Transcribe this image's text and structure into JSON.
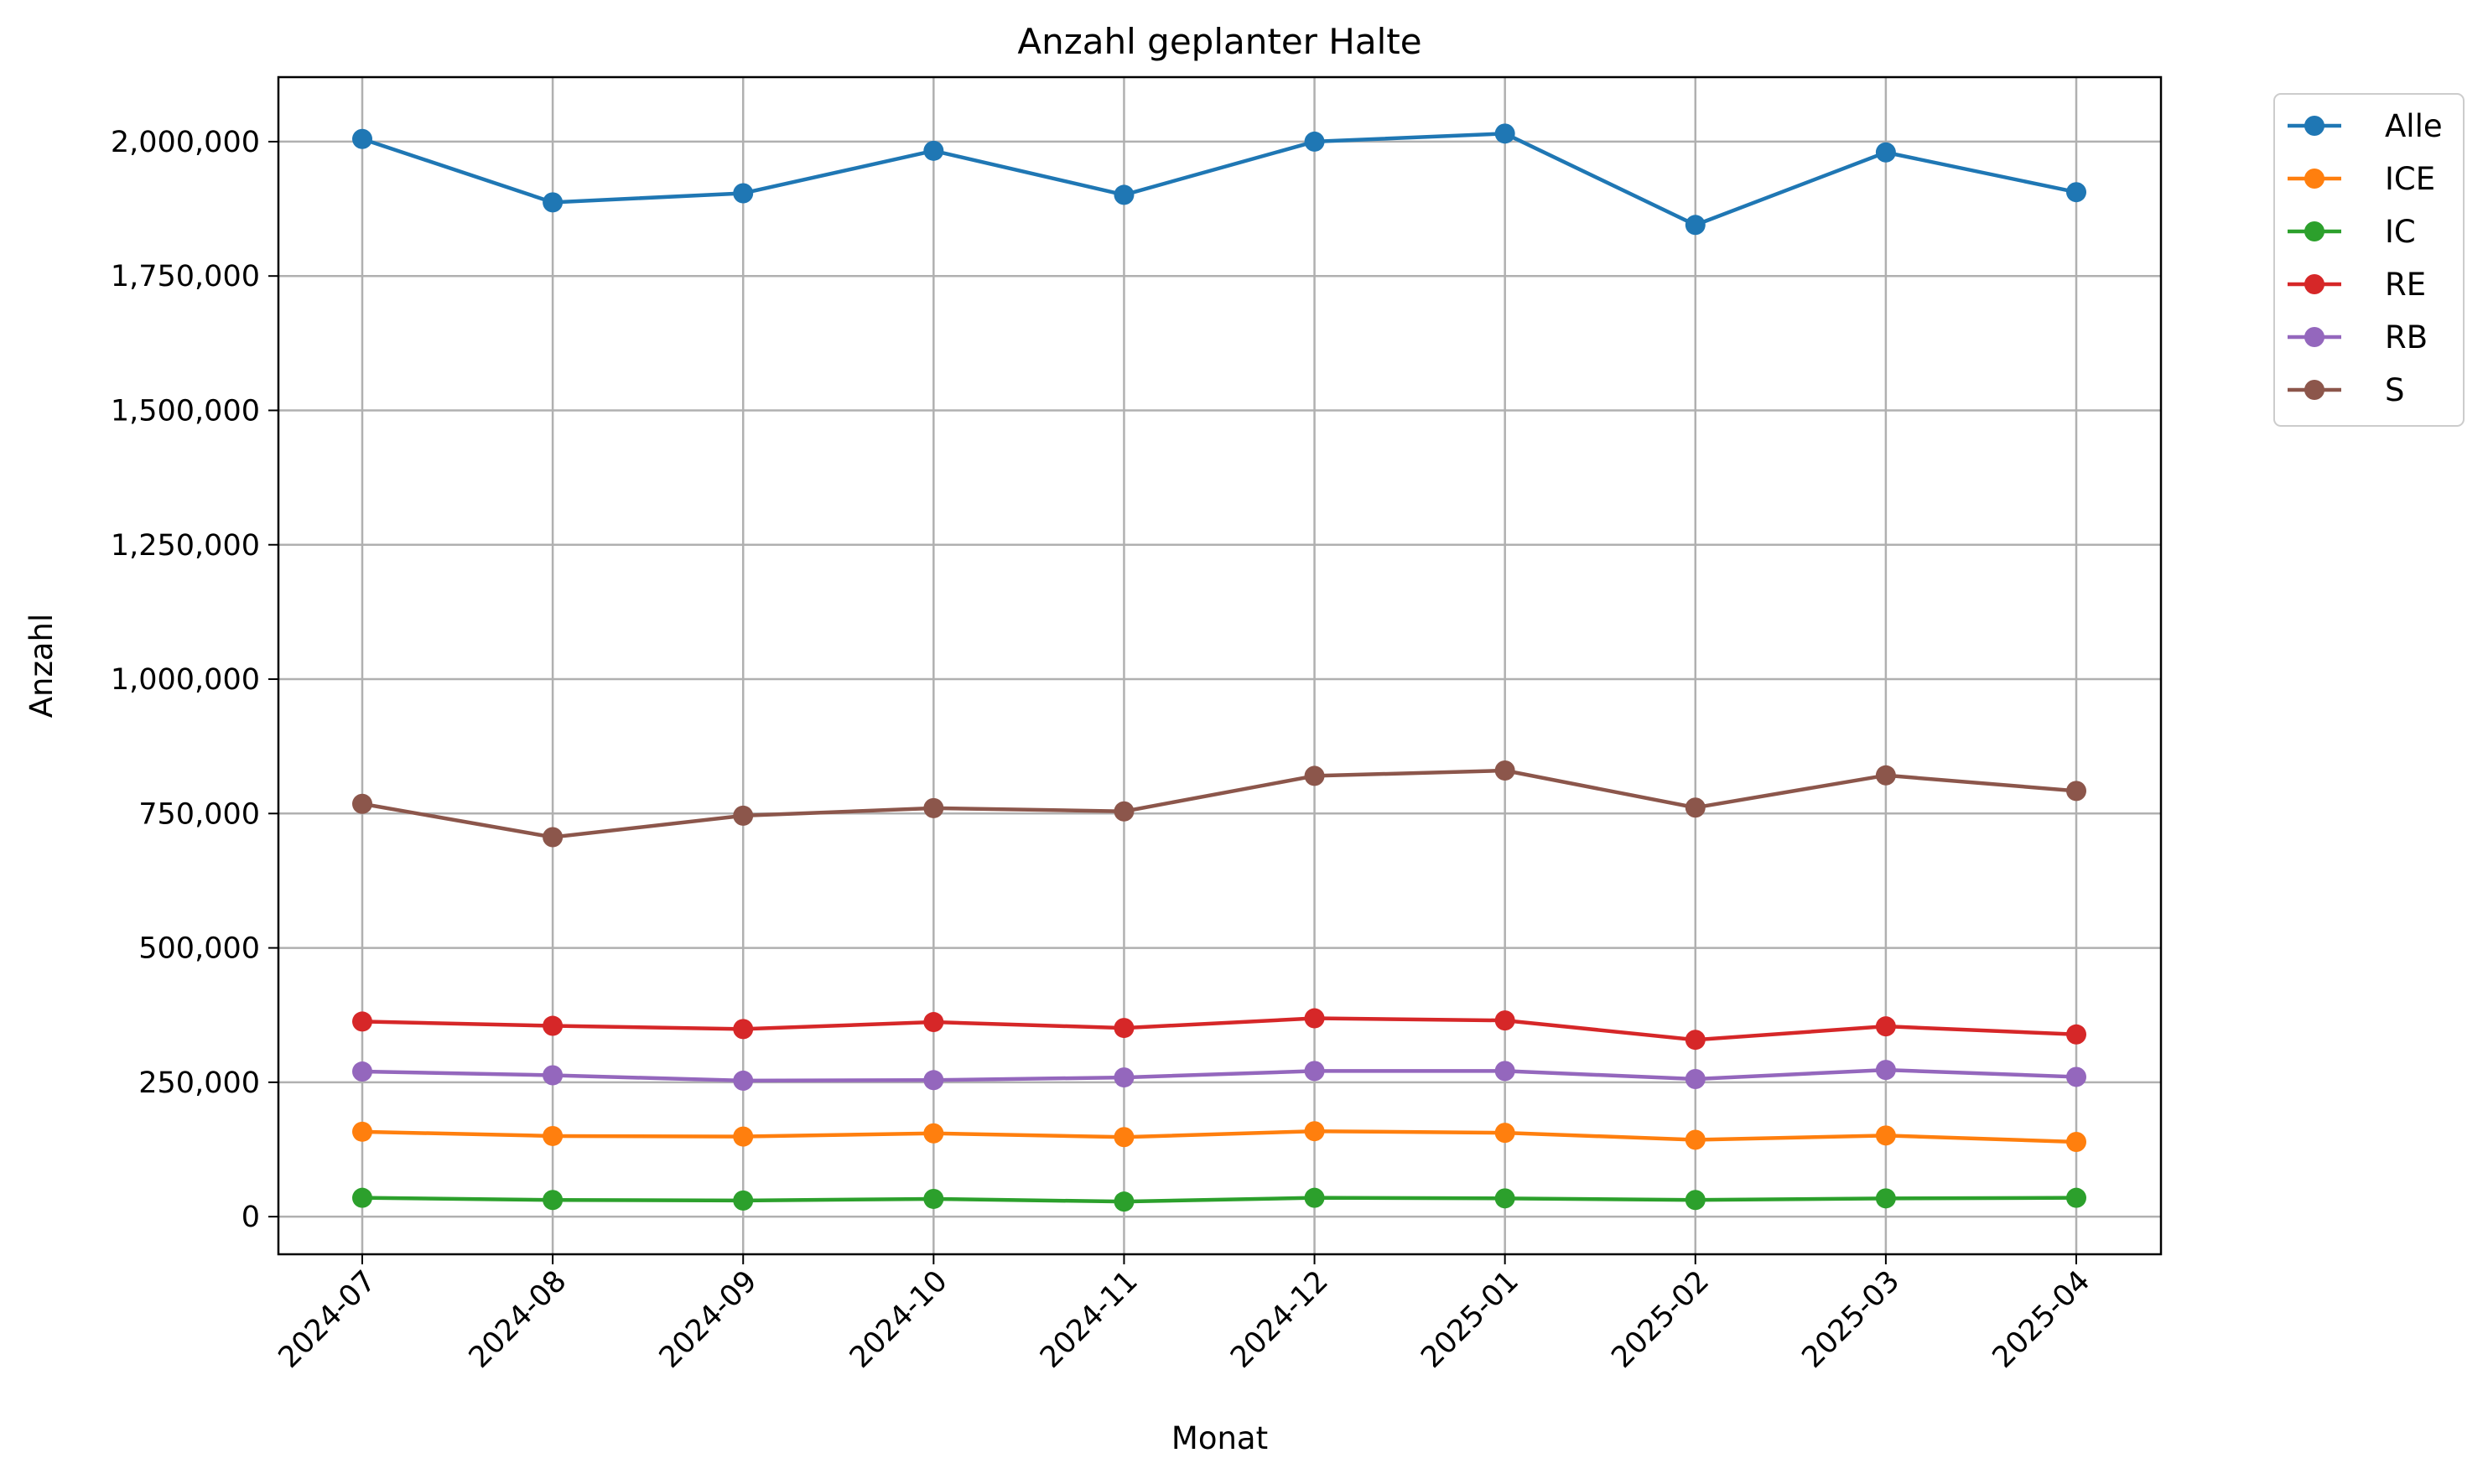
{
  "chart_data": {
    "type": "line",
    "title": "Anzahl geplanter Halte",
    "xlabel": "Monat",
    "ylabel": "Anzahl",
    "x": [
      "2024-07",
      "2024-08",
      "2024-09",
      "2024-10",
      "2024-11",
      "2024-12",
      "2025-01",
      "2025-02",
      "2025-03",
      "2025-04"
    ],
    "ylim": [
      -70000,
      2120000
    ],
    "yticks": [
      0,
      250000,
      500000,
      750000,
      1000000,
      1250000,
      1500000,
      1750000,
      2000000
    ],
    "ytick_labels": [
      "0",
      "250,000",
      "500,000",
      "750,000",
      "1,000,000",
      "1,250,000",
      "1,500,000",
      "1,750,000",
      "2,000,000"
    ],
    "grid": true,
    "legend_position": "outside top-right",
    "series": [
      {
        "name": "Alle",
        "color": "#1f77b4",
        "values": [
          2005000,
          1887000,
          1904000,
          1983000,
          1901000,
          2000000,
          2015000,
          1845000,
          1980000,
          1906000
        ]
      },
      {
        "name": "ICE",
        "color": "#ff7f0e",
        "values": [
          158000,
          150000,
          149000,
          155000,
          148000,
          159000,
          156000,
          143000,
          151000,
          139000
        ]
      },
      {
        "name": "IC",
        "color": "#2ca02c",
        "values": [
          35000,
          31000,
          30000,
          33000,
          28000,
          35000,
          34000,
          31000,
          34000,
          35000
        ]
      },
      {
        "name": "RE",
        "color": "#d62728",
        "values": [
          363000,
          355000,
          349000,
          362000,
          351000,
          369000,
          365000,
          329000,
          354000,
          339000
        ]
      },
      {
        "name": "RB",
        "color": "#9467bd",
        "values": [
          270000,
          263000,
          253000,
          254000,
          259000,
          271000,
          271000,
          256000,
          273000,
          260000
        ]
      },
      {
        "name": "S",
        "color": "#8c564b",
        "values": [
          768000,
          706000,
          746000,
          760000,
          754000,
          820000,
          830000,
          761000,
          821000,
          792000
        ]
      }
    ]
  }
}
